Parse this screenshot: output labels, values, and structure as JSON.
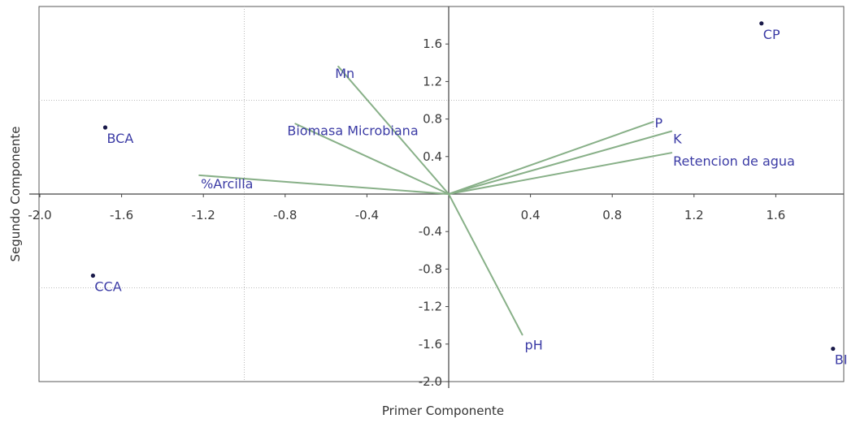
{
  "chart_data": {
    "type": "scatter",
    "subtype": "biplot",
    "title": "",
    "xlabel": "Primer Componente",
    "ylabel": "Segundo Componente",
    "xlim": [
      -2.0,
      1.92
    ],
    "ylim": [
      -2.0,
      2.0
    ],
    "x_ticks": [
      -2.0,
      -1.6,
      -1.2,
      -0.8,
      -0.4,
      0.4,
      0.8,
      1.2,
      1.6
    ],
    "x_tick_labels": [
      "-2.0",
      "-1.6",
      "-1.2",
      "-0.8",
      "-0.4",
      "0.4",
      "0.8",
      "1.2",
      "1.6"
    ],
    "y_ticks": [
      1.6,
      1.2,
      0.8,
      0.4,
      -0.4,
      -0.8,
      -1.2,
      -1.6,
      -2.0
    ],
    "y_tick_labels": [
      "1.6",
      "1.2",
      "0.8",
      "0.4",
      "-0.4",
      "-0.8",
      "-1.2",
      "-1.6",
      "-2.0"
    ],
    "grid": {
      "x": [
        -1.0,
        1.0
      ],
      "y": [
        1.0,
        -1.0
      ],
      "style": "dotted"
    },
    "colors": {
      "points": "#1a1a4a",
      "labels": "#3b3ba5",
      "vectors": "#88b088",
      "axes": "#444444",
      "grid": "#bbbbbb"
    },
    "points": [
      {
        "label": "CP",
        "x": 1.53,
        "y": 1.82
      },
      {
        "label": "BCA",
        "x": -1.68,
        "y": 0.71
      },
      {
        "label": "CCA",
        "x": -1.74,
        "y": -0.87
      },
      {
        "label": "BI",
        "x": 1.88,
        "y": -1.65
      }
    ],
    "vectors": [
      {
        "label": "Mn",
        "x": -0.54,
        "y": 1.36
      },
      {
        "label": "Biomasa Microbiana",
        "x": -0.75,
        "y": 0.75
      },
      {
        "label": "%Arcilla",
        "x": -1.22,
        "y": 0.2
      },
      {
        "label": "P",
        "x": 1.0,
        "y": 0.77
      },
      {
        "label": "K",
        "x": 1.09,
        "y": 0.67
      },
      {
        "label": "Retencion de agua",
        "x": 1.09,
        "y": 0.44
      },
      {
        "label": "pH",
        "x": 0.36,
        "y": -1.5
      }
    ]
  }
}
